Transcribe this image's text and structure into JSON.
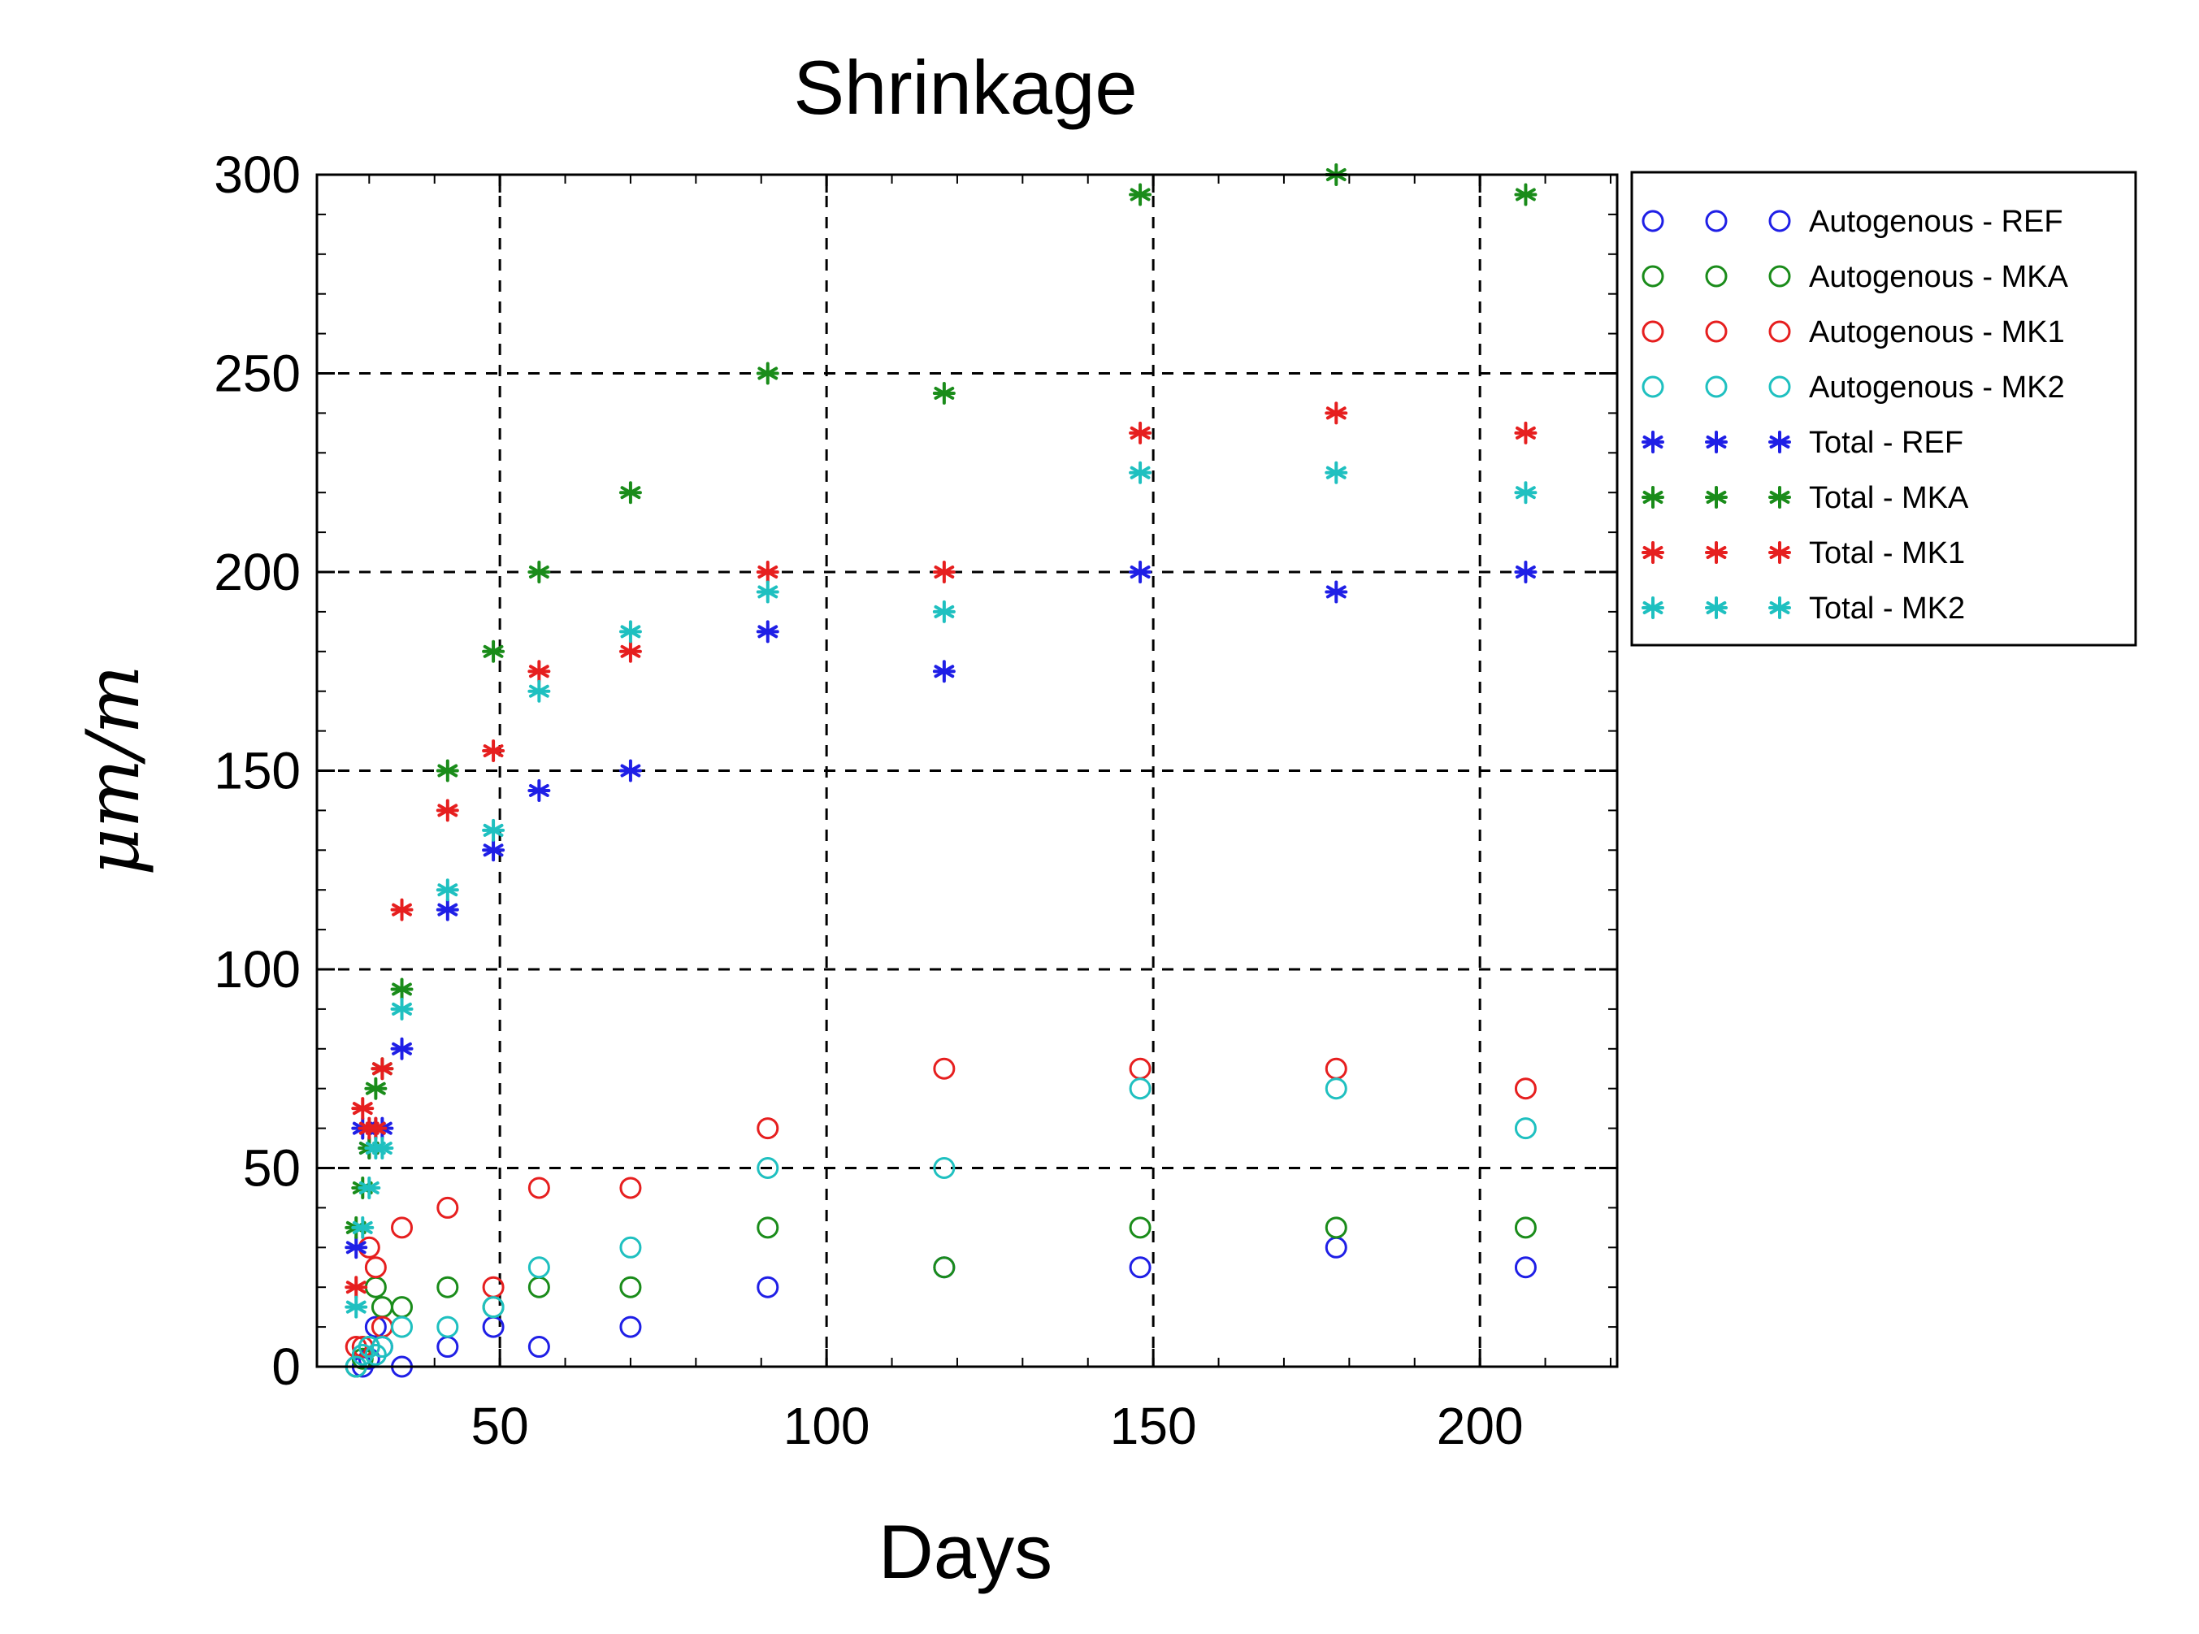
{
  "chart_data": {
    "type": "scatter",
    "title": "Shrinkage",
    "xlabel": "Days",
    "ylabel": "μm/m",
    "xlim": [
      22,
      221
    ],
    "ylim": [
      0,
      300
    ],
    "xticks": [
      50,
      100,
      150,
      200
    ],
    "yticks": [
      0,
      50,
      100,
      150,
      200,
      250,
      300
    ],
    "grid": true,
    "legend_position": "outside-right",
    "series": [
      {
        "name": "Autogenous - REF",
        "marker": "circle",
        "color": "#1f1fe6",
        "x": [
          28,
          29,
          30,
          31,
          32,
          35,
          42,
          49,
          56,
          70,
          91,
          118,
          148,
          178,
          207
        ],
        "y": [
          0,
          0,
          2,
          10,
          5,
          0,
          5,
          10,
          5,
          10,
          20,
          25,
          25,
          30,
          25
        ]
      },
      {
        "name": "Autogenous - MKA",
        "marker": "circle",
        "color": "#1a8c1a",
        "x": [
          28,
          29,
          30,
          31,
          32,
          35,
          42,
          49,
          56,
          70,
          91,
          118,
          148,
          178,
          207
        ],
        "y": [
          0,
          2,
          5,
          20,
          15,
          15,
          20,
          15,
          20,
          20,
          35,
          25,
          35,
          35,
          35
        ]
      },
      {
        "name": "Autogenous - MK1",
        "marker": "circle",
        "color": "#e61f1f",
        "x": [
          28,
          29,
          30,
          31,
          32,
          35,
          42,
          49,
          56,
          70,
          91,
          118,
          148,
          178,
          207
        ],
        "y": [
          5,
          5,
          30,
          25,
          10,
          35,
          40,
          20,
          45,
          45,
          60,
          75,
          75,
          75,
          70
        ]
      },
      {
        "name": "Autogenous - MK2",
        "marker": "circle",
        "color": "#1fc0c0",
        "x": [
          28,
          29,
          30,
          31,
          32,
          35,
          42,
          49,
          56,
          70,
          91,
          118,
          148,
          178,
          207
        ],
        "y": [
          0,
          3,
          5,
          3,
          5,
          10,
          10,
          15,
          25,
          30,
          50,
          50,
          70,
          70,
          60
        ]
      },
      {
        "name": "Total - REF",
        "marker": "star",
        "color": "#1f1fe6",
        "x": [
          28,
          29,
          30,
          31,
          32,
          35,
          42,
          49,
          56,
          70,
          91,
          118,
          148,
          178,
          207
        ],
        "y": [
          30,
          60,
          55,
          60,
          60,
          80,
          115,
          130,
          145,
          150,
          185,
          175,
          200,
          195,
          200
        ]
      },
      {
        "name": "Total - MKA",
        "marker": "star",
        "color": "#1a8c1a",
        "x": [
          28,
          29,
          30,
          31,
          32,
          35,
          42,
          49,
          56,
          70,
          91,
          118,
          148,
          178,
          207
        ],
        "y": [
          35,
          45,
          55,
          70,
          75,
          95,
          150,
          180,
          200,
          220,
          250,
          245,
          295,
          300,
          295
        ]
      },
      {
        "name": "Total - MK1",
        "marker": "star",
        "color": "#e61f1f",
        "x": [
          28,
          29,
          30,
          31,
          32,
          35,
          42,
          49,
          56,
          70,
          91,
          118,
          148,
          178,
          207
        ],
        "y": [
          20,
          65,
          60,
          60,
          75,
          115,
          140,
          155,
          175,
          180,
          200,
          200,
          235,
          240,
          235
        ]
      },
      {
        "name": "Total - MK2",
        "marker": "star",
        "color": "#1fc0c0",
        "x": [
          28,
          29,
          30,
          31,
          32,
          35,
          42,
          49,
          56,
          70,
          91,
          118,
          148,
          178,
          207
        ],
        "y": [
          15,
          35,
          45,
          55,
          55,
          90,
          120,
          135,
          170,
          185,
          195,
          190,
          225,
          225,
          220
        ]
      }
    ]
  }
}
